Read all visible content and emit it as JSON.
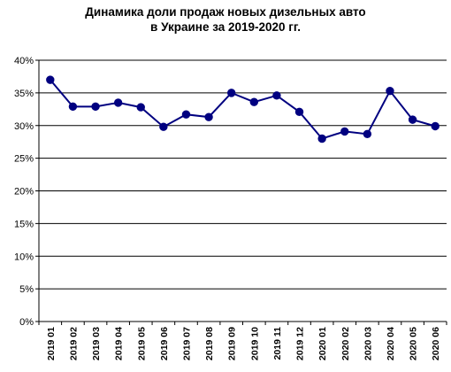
{
  "chart_data": {
    "type": "line",
    "title_line1": "Динамика доли продаж новых дизельных авто",
    "title_line2": "в Украине за 2019-2020 гг.",
    "xlabel": "",
    "ylabel": "",
    "ylim": [
      0,
      40
    ],
    "yticks": [
      "0%",
      "5%",
      "10%",
      "15%",
      "20%",
      "25%",
      "30%",
      "35%",
      "40%"
    ],
    "grid": true,
    "categories": [
      "2019 01",
      "2019 02",
      "2019 03",
      "2019 04",
      "2019 05",
      "2019 06",
      "2019 07",
      "2019 08",
      "2019 09",
      "2019 10",
      "2019 11",
      "2019 12",
      "2020 01",
      "2020 02",
      "2020 03",
      "2020 04",
      "2020 05",
      "2020 06"
    ],
    "series": [
      {
        "values": [
          37.0,
          32.9,
          32.9,
          33.5,
          32.8,
          29.8,
          31.7,
          31.3,
          35.0,
          33.6,
          34.6,
          32.1,
          28.0,
          29.1,
          28.7,
          35.3,
          30.9,
          29.9
        ],
        "color": "#000080"
      }
    ]
  }
}
